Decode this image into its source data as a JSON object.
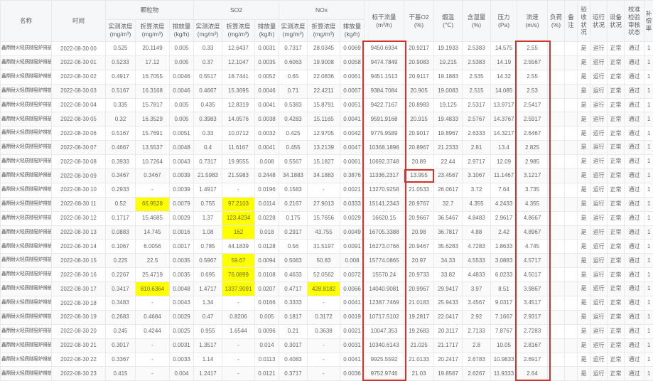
{
  "site_name": "鑫鼎耐火轻质隧窑炉排放口",
  "colors": {
    "highlight_yellow": "#ffff00",
    "annotation_red": "#d0342c",
    "header_bg": "#f6f7f8",
    "alt_row_bg": "#fafafa"
  },
  "table": {
    "group_headers": {
      "pm": "颗粒物",
      "so2": "SO2",
      "nox": "NOx"
    },
    "sub_headers": {
      "measured": "实测浓度\n(mg/m³)",
      "converted": "折算浓度\n(mg/m³)",
      "emission": "排放量\n(kg/h)"
    },
    "headers": {
      "name": "名称",
      "time": "时间",
      "flow": "标干流量\n(m³/h)",
      "o2": "干基O2\n(%)",
      "temp": "烟温\n(℃)",
      "humidity": "含湿量\n(%)",
      "pressure": "压力\n(Pa)",
      "speed": "流速\n(m/s)",
      "load": "负荷\n(%)",
      "remark": "备注",
      "acceptance": "验收状况",
      "running": "运行状况",
      "device": "设备状况",
      "calibration": "校准检验审核状态",
      "compensation": "补偿率"
    },
    "status_values": {
      "acceptance": "是",
      "running": "运行",
      "device": "正常",
      "calibration": "通过",
      "compensation": "1"
    },
    "value_columns": [
      "pm_measured",
      "pm_converted",
      "pm_emission",
      "so2_measured",
      "so2_converted",
      "so2_emission",
      "nox_measured",
      "nox_converted",
      "nox_emission",
      "flow",
      "o2",
      "temp",
      "humidity",
      "pressure",
      "speed"
    ],
    "rows": [
      {
        "time": "2022-08-30 00",
        "v": [
          "0.525",
          "20.1149",
          "0.005",
          "0.33",
          "12.6437",
          "0.0031",
          "0.7317",
          "28.0345",
          "0.0069",
          "9450.6934",
          "20.9217",
          "19.1933",
          "2.5383",
          "14.575",
          "2.55"
        ]
      },
      {
        "time": "2022-08-30 01",
        "v": [
          "0.5233",
          "17.12",
          "0.005",
          "0.37",
          "12.1047",
          "0.0035",
          "0.6063",
          "19.9008",
          "0.0058",
          "9474.7849",
          "20.9083",
          "19.215",
          "2.5383",
          "14.19",
          "2.5567"
        ]
      },
      {
        "time": "2022-08-30 02",
        "v": [
          "0.4917",
          "16.7055",
          "0.0046",
          "0.5517",
          "18.7441",
          "0.0052",
          "0.65",
          "22.0836",
          "0.0061",
          "9451.1513",
          "20.9117",
          "19.1883",
          "2.535",
          "14.32",
          "2.55"
        ]
      },
      {
        "time": "2022-08-30 03",
        "v": [
          "0.5167",
          "16.3168",
          "0.0046",
          "0.4667",
          "15.3695",
          "0.0046",
          "0.71",
          "22.4211",
          "0.0067",
          "9384.7084",
          "20.905",
          "19.0083",
          "2.515",
          "14.085",
          "2.53"
        ]
      },
      {
        "time": "2022-08-30 04",
        "v": [
          "0.335",
          "15.7817",
          "0.005",
          "0.435",
          "12.8319",
          "0.0041",
          "0.5383",
          "15.8791",
          "0.0051",
          "9422.7167",
          "20.8983",
          "19.125",
          "2.5317",
          "13.9717",
          "2.5417"
        ]
      },
      {
        "time": "2022-08-30 05",
        "v": [
          "0.32",
          "16.3529",
          "0.005",
          "0.3983",
          "14.0576",
          "0.0038",
          "0.4283",
          "15.1165",
          "0.0041",
          "9591.9168",
          "20.915",
          "19.4833",
          "2.5767",
          "14.3767",
          "2.5917"
        ]
      },
      {
        "time": "2022-08-30 06",
        "v": [
          "0.5167",
          "15.7691",
          "0.0051",
          "0.33",
          "10.0712",
          "0.0032",
          "0.425",
          "12.9705",
          "0.0042",
          "9775.9589",
          "20.9017",
          "19.8967",
          "2.6333",
          "14.3217",
          "2.6467"
        ]
      },
      {
        "time": "2022-08-30 07",
        "v": [
          "0.4667",
          "13.5537",
          "0.0048",
          "0.4",
          "11.6167",
          "0.0041",
          "0.455",
          "13.2139",
          "0.0047",
          "10368.1898",
          "20.8967",
          "21.2333",
          "2.81",
          "13.4",
          "2.825"
        ]
      },
      {
        "time": "2022-08-30 08",
        "v": [
          "0.3933",
          "10.7264",
          "0.0043",
          "0.7317",
          "19.9555",
          "0.008",
          "0.5567",
          "15.1827",
          "0.0061",
          "10692.3748",
          "20.89",
          "22.44",
          "2.9717",
          "12.09",
          "2.985"
        ]
      },
      {
        "time": "2022-08-30 09",
        "v": [
          "0.3467",
          "0.3467",
          "0.0039",
          "21.5983",
          "21.5983",
          "0.2448",
          "34.1883",
          "34.1883",
          "0.3876",
          "11336.2317",
          "13.955",
          "23.4567",
          "3.1067",
          "11.1467",
          "3.1217"
        ]
      },
      {
        "time": "2022-08-30 10",
        "v": [
          "0.2933",
          "-",
          "0.0039",
          "1.4917",
          "-",
          "0.0196",
          "0.1583",
          "-",
          "0.0021",
          "13270.9258",
          "21.0533",
          "26.0617",
          "3.72",
          "7.64",
          "3.735"
        ]
      },
      {
        "time": "2022-08-30 11",
        "v": [
          "0.52",
          "66.9528",
          "0.0079",
          "0.755",
          "97.2103",
          "0.0114",
          "0.2167",
          "27.9013",
          "0.0333",
          "15141.2343",
          "20.9767",
          "32.7",
          "4.355",
          "4.2433",
          "4.355"
        ]
      },
      {
        "time": "2022-08-30 12",
        "v": [
          "0.1717",
          "15.4685",
          "0.0029",
          "1.37",
          "123.4234",
          "0.0228",
          "0.175",
          "15.7656",
          "0.0029",
          "16620.15",
          "20.9667",
          "36.5467",
          "4.8483",
          "2.9617",
          "4.8667"
        ]
      },
      {
        "time": "2022-08-30 13",
        "v": [
          "0.0883",
          "14.745",
          "0.0016",
          "1.08",
          "162",
          "0.018",
          "0.2917",
          "43.755",
          "0.0049",
          "16705.3388",
          "20.98",
          "36.7817",
          "4.88",
          "2.42",
          "4.8967"
        ]
      },
      {
        "time": "2022-08-30 14",
        "v": [
          "0.1067",
          "6.0056",
          "0.0017",
          "0.785",
          "44.1839",
          "0.0128",
          "0.56",
          "31.5197",
          "0.0091",
          "16273.0766",
          "20.9467",
          "35.6283",
          "4.7283",
          "1.8633",
          "4.745"
        ]
      },
      {
        "time": "2022-08-30 15",
        "v": [
          "0.225",
          "22.5",
          "0.0035",
          "0.5967",
          "59.67",
          "0.0094",
          "0.5083",
          "50.83",
          "0.008",
          "15774.0865",
          "20.97",
          "34.33",
          "4.5533",
          "3.0883",
          "4.5717"
        ]
      },
      {
        "time": "2022-08-30 16",
        "v": [
          "0.2267",
          "25.4719",
          "0.0035",
          "0.695",
          "76.0899",
          "0.0108",
          "0.4633",
          "52.0562",
          "0.0072",
          "15570.24",
          "20.9733",
          "33.82",
          "4.4833",
          "6.0233",
          "4.5017"
        ]
      },
      {
        "time": "2022-08-30 17",
        "v": [
          "0.3417",
          "810.6364",
          "0.0048",
          "1.4717",
          "1337.9091",
          "0.0207",
          "0.4717",
          "428.8182",
          "0.0066",
          "14040.9081",
          "20.9967",
          "29.9417",
          "3.97",
          "8.51",
          "3.9867"
        ]
      },
      {
        "time": "2022-08-30 18",
        "v": [
          "0.3483",
          "-",
          "0.0043",
          "1.34",
          "-",
          "0.0166",
          "0.3333",
          "-",
          "0.0041",
          "12387.7469",
          "21.0183",
          "25.9433",
          "3.4567",
          "9.0317",
          "3.4517"
        ]
      },
      {
        "time": "2022-08-30 19",
        "v": [
          "0.2683",
          "0.4684",
          "0.0029",
          "0.47",
          "0.8206",
          "0.005",
          "0.1817",
          "0.3172",
          "0.0019",
          "10717.5102",
          "19.2817",
          "22.0417",
          "2.92",
          "7.1667",
          "2.9317"
        ]
      },
      {
        "time": "2022-08-30 20",
        "v": [
          "0.245",
          "0.4244",
          "0.0025",
          "0.955",
          "1.6544",
          "0.0096",
          "0.21",
          "0.3638",
          "0.0021",
          "10047.353",
          "19.2683",
          "20.3117",
          "2.7133",
          "7.8767",
          "2.7283"
        ]
      },
      {
        "time": "2022-08-30 21",
        "v": [
          "0.3017",
          "-",
          "0.0031",
          "1.3517",
          "-",
          "0.014",
          "0.3017",
          "-",
          "0.0031",
          "10340.6143",
          "21.025",
          "21.1717",
          "2.8",
          "10.05",
          "2.8167"
        ]
      },
      {
        "time": "2022-08-30 22",
        "v": [
          "0.3367",
          "-",
          "0.0033",
          "1.14",
          "-",
          "0.0113",
          "0.4083",
          "-",
          "0.0041",
          "9925.5592",
          "21.0133",
          "20.2417",
          "2.6783",
          "10.9833",
          "2.6917"
        ]
      },
      {
        "time": "2022-08-30 23",
        "v": [
          "0.415",
          "-",
          "0.004",
          "1.2417",
          "-",
          "0.0121",
          "0.3717",
          "-",
          "0.0036",
          "9752.9746",
          "21.03",
          "19.8567",
          "2.6267",
          "11.9333",
          "2.64"
        ]
      }
    ],
    "highlight_cells": [
      [
        11,
        1
      ],
      [
        17,
        1
      ],
      [
        11,
        4
      ],
      [
        12,
        4
      ],
      [
        13,
        4
      ],
      [
        15,
        4
      ],
      [
        16,
        4
      ],
      [
        17,
        4
      ],
      [
        17,
        7
      ]
    ],
    "red_boxed_cell": {
      "row": 9,
      "v_index": 10,
      "value": "13.955"
    },
    "red_boxed_columns": [
      "flow",
      "speed"
    ]
  }
}
